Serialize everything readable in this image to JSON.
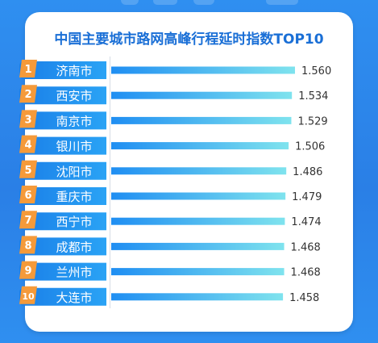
{
  "chart_data": {
    "type": "bar",
    "orientation": "horizontal",
    "title": "中国主要城市路网高峰行程延时指数TOP10",
    "categories": [
      "济南市",
      "西安市",
      "南京市",
      "银川市",
      "沈阳市",
      "重庆市",
      "西宁市",
      "成都市",
      "兰州市",
      "大连市"
    ],
    "ranks": [
      "1",
      "2",
      "3",
      "4",
      "5",
      "6",
      "7",
      "8",
      "9",
      "10"
    ],
    "values": [
      1.56,
      1.534,
      1.529,
      1.506,
      1.486,
      1.479,
      1.474,
      1.468,
      1.468,
      1.458
    ],
    "value_labels": [
      "1.560",
      "1.534",
      "1.529",
      "1.506",
      "1.486",
      "1.479",
      "1.474",
      "1.468",
      "1.468",
      "1.458"
    ],
    "xlim": [
      0,
      1.56
    ],
    "grid": false,
    "legend": "none",
    "colors": {
      "bar_start": "#1f8ef2",
      "bar_end": "#7fe3ee",
      "label_pill_start": "#1a7fe8",
      "label_pill_end": "#2aa3f5",
      "rank_badge": "#f59a3a",
      "value_text": "#333333",
      "title": "#1a6fd6"
    }
  }
}
